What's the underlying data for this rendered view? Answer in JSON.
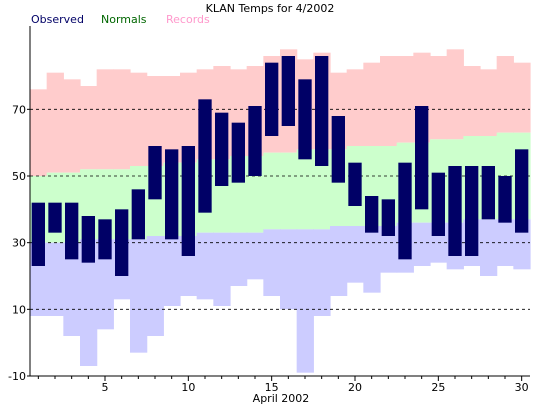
{
  "chart_data": {
    "type": "bar",
    "title": "KLAN Temps for 4/2002",
    "xlabel": "April 2002",
    "ylabel": "",
    "ylim": [
      -10,
      95
    ],
    "xlim": [
      0.5,
      30.5
    ],
    "y_ticks": [
      -10,
      10,
      30,
      50,
      70
    ],
    "x_ticks": [
      5,
      10,
      15,
      20,
      25,
      30
    ],
    "grid": "dashed horizontal at y ticks",
    "legend": {
      "placement": "top-left",
      "entries": [
        {
          "label": "Observed",
          "color": "#000066"
        },
        {
          "label": "Normals",
          "color": "#006600"
        },
        {
          "label": "Records",
          "color": "#ff99cc"
        }
      ]
    },
    "colors": {
      "observed": "#000066",
      "normals": "#ccffcc",
      "record_high": "#ffcccc",
      "record_low": "#ccccff"
    },
    "days": [
      1,
      2,
      3,
      4,
      5,
      6,
      7,
      8,
      9,
      10,
      11,
      12,
      13,
      14,
      15,
      16,
      17,
      18,
      19,
      20,
      21,
      22,
      23,
      24,
      25,
      26,
      27,
      28,
      29,
      30
    ],
    "series": [
      {
        "name": "Observed",
        "high": [
          42,
          42,
          42,
          38,
          37,
          40,
          46,
          59,
          58,
          59,
          73,
          69,
          66,
          71,
          84,
          86,
          79,
          86,
          68,
          54,
          44,
          43,
          54,
          71,
          51,
          53,
          53,
          53,
          50,
          58
        ],
        "low": [
          23,
          33,
          25,
          24,
          25,
          20,
          31,
          43,
          31,
          26,
          39,
          47,
          48,
          50,
          62,
          65,
          55,
          53,
          48,
          41,
          33,
          32,
          25,
          40,
          32,
          26,
          26,
          37,
          36,
          33
        ]
      },
      {
        "name": "Normals",
        "high": [
          50,
          51,
          51,
          52,
          52,
          52,
          53,
          53,
          54,
          54,
          55,
          55,
          56,
          56,
          57,
          57,
          58,
          58,
          58,
          59,
          59,
          59,
          60,
          60,
          61,
          61,
          62,
          62,
          63,
          63
        ],
        "low": [
          30,
          30,
          30,
          31,
          31,
          31,
          31,
          32,
          32,
          32,
          33,
          33,
          33,
          33,
          34,
          34,
          34,
          34,
          35,
          35,
          35,
          35,
          36,
          36,
          36,
          36,
          37,
          37,
          37,
          37
        ]
      },
      {
        "name": "Records",
        "high": [
          76,
          81,
          79,
          77,
          82,
          82,
          81,
          80,
          80,
          81,
          82,
          83,
          82,
          83,
          86,
          88,
          85,
          87,
          81,
          82,
          84,
          86,
          86,
          87,
          86,
          88,
          83,
          82,
          86,
          84
        ],
        "low": [
          8,
          8,
          2,
          -7,
          4,
          13,
          -3,
          2,
          11,
          14,
          13,
          11,
          17,
          19,
          14,
          10,
          -9,
          8,
          14,
          18,
          15,
          21,
          21,
          23,
          24,
          22,
          23,
          20,
          23,
          22
        ]
      }
    ]
  }
}
